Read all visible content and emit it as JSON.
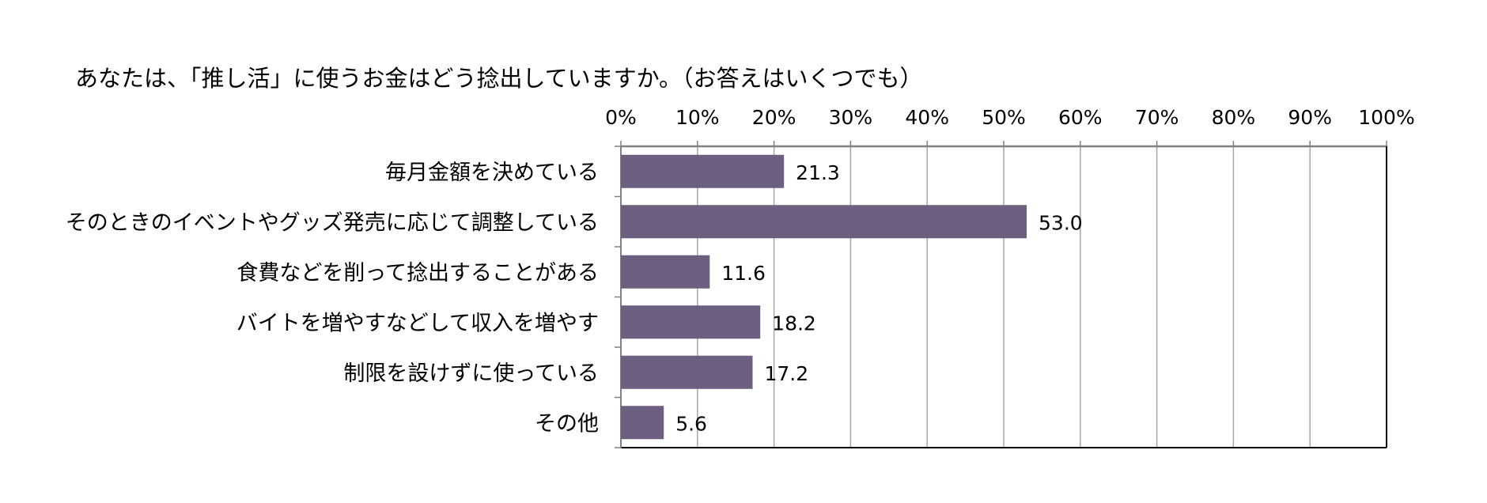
{
  "chart_data": {
    "type": "bar",
    "orientation": "horizontal",
    "title": "あなたは、「推し活」に使うお金はどう捻出していますか。（お答えはいくつでも）",
    "categories": [
      "毎月金額を決めている",
      "そのときのイベントやグッズ発売に応じて調整している",
      "食費などを削って捻出することがある",
      "バイトを増やすなどして収入を増やす",
      "制限を設けずに使っている",
      "その他"
    ],
    "values": [
      21.3,
      53.0,
      11.6,
      18.2,
      17.2,
      5.6
    ],
    "value_labels": [
      "21.3",
      "53.0",
      "11.6",
      "18.2",
      "17.2",
      "5.6"
    ],
    "xlim": [
      0,
      100
    ],
    "x_ticks": [
      "0%",
      "10%",
      "20%",
      "30%",
      "40%",
      "50%",
      "60%",
      "70%",
      "80%",
      "90%",
      "100%"
    ],
    "x_axis_position": "top",
    "grid": true,
    "bar_color": "#6d5f80",
    "grid_color": "#a6a6a6"
  }
}
